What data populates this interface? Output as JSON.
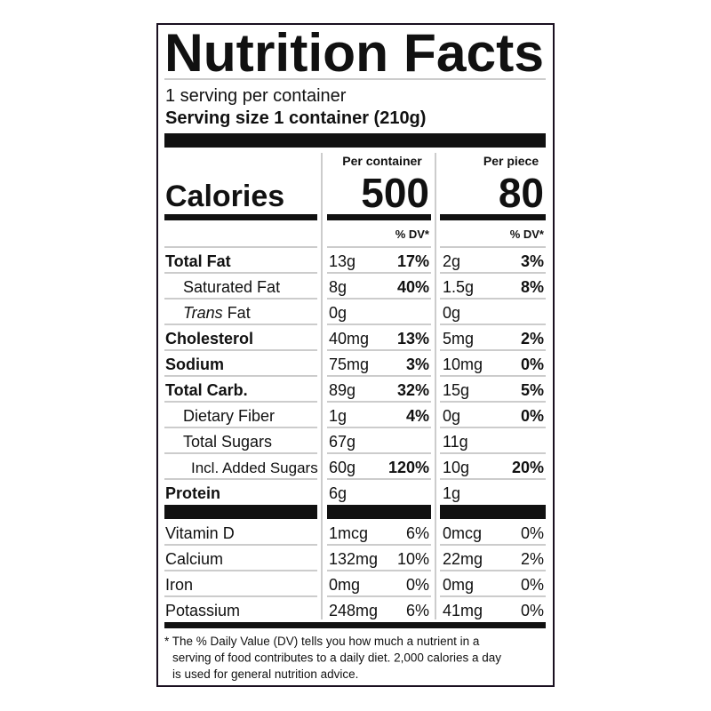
{
  "title": "Nutrition Facts",
  "servings_per_container": "1 serving per container",
  "serving_size": "Serving size 1 container (210g)",
  "columns": [
    "Per container",
    "Per piece"
  ],
  "calories": {
    "label": "Calories",
    "values": [
      "500",
      "80"
    ]
  },
  "dv_header": [
    "% DV*",
    "% DV*"
  ],
  "nutrients": [
    {
      "name": "Total Fat",
      "bold": true,
      "indent": 0,
      "values": [
        [
          "13g",
          "17%"
        ],
        [
          "2g",
          "3%"
        ]
      ]
    },
    {
      "name": "Saturated Fat",
      "bold": false,
      "indent": 1,
      "values": [
        [
          "8g",
          "40%"
        ],
        [
          "1.5g",
          "8%"
        ]
      ]
    },
    {
      "name_italic": "Trans",
      "name": "Fat",
      "bold": false,
      "indent": 1,
      "values": [
        [
          "0g",
          null
        ],
        [
          "0g",
          null
        ]
      ]
    },
    {
      "name": "Cholesterol",
      "bold": true,
      "indent": 0,
      "values": [
        [
          "40mg",
          "13%"
        ],
        [
          "5mg",
          "2%"
        ]
      ]
    },
    {
      "name": "Sodium",
      "bold": true,
      "indent": 0,
      "values": [
        [
          "75mg",
          "3%"
        ],
        [
          "10mg",
          "0%"
        ]
      ]
    },
    {
      "name": "Total Carb.",
      "bold": true,
      "indent": 0,
      "values": [
        [
          "89g",
          "32%"
        ],
        [
          "15g",
          "5%"
        ]
      ]
    },
    {
      "name": "Dietary Fiber",
      "bold": false,
      "indent": 1,
      "values": [
        [
          "1g",
          "4%"
        ],
        [
          "0g",
          "0%"
        ]
      ]
    },
    {
      "name": "Total Sugars",
      "bold": false,
      "indent": 1,
      "values": [
        [
          "67g",
          null
        ],
        [
          "11g",
          null
        ]
      ]
    },
    {
      "name": "Incl. Added Sugars",
      "bold": false,
      "indent": 2,
      "values": [
        [
          "60g",
          "120%"
        ],
        [
          "10g",
          "20%"
        ]
      ]
    },
    {
      "name": "Protein",
      "bold": true,
      "indent": 0,
      "values": [
        [
          "6g",
          null
        ],
        [
          "1g",
          null
        ]
      ]
    }
  ],
  "vitamins": [
    {
      "name": "Vitamin D",
      "values": [
        [
          "1mcg",
          "6%"
        ],
        [
          "0mcg",
          "0%"
        ]
      ]
    },
    {
      "name": "Calcium",
      "values": [
        [
          "132mg",
          "10%"
        ],
        [
          "22mg",
          "2%"
        ]
      ]
    },
    {
      "name": "Iron",
      "values": [
        [
          "0mg",
          "0%"
        ],
        [
          "0mg",
          "0%"
        ]
      ]
    },
    {
      "name": "Potassium",
      "values": [
        [
          "248mg",
          "6%"
        ],
        [
          "41mg",
          "0%"
        ]
      ]
    }
  ],
  "footnote": [
    "* The % Daily Value (DV) tells you how much a nutrient in a",
    "serving of food contributes to a daily diet. 2,000 calories a day",
    "is used for general nutrition advice."
  ]
}
